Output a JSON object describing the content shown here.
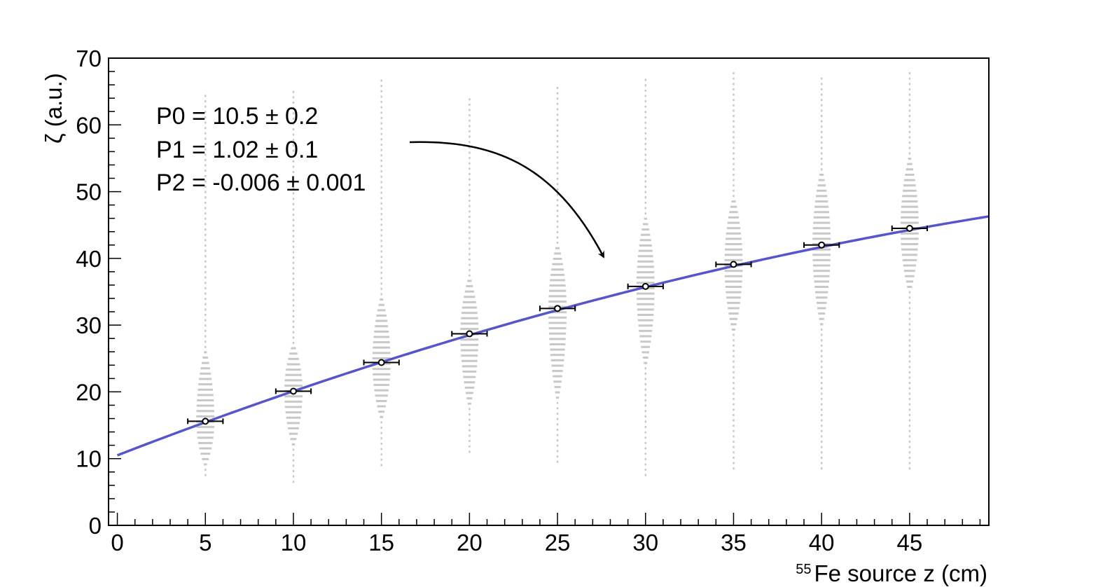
{
  "chart_data": {
    "type": "scatter",
    "xlabel_sup": "55",
    "xlabel": "Fe source z (cm)",
    "ylabel": "ζ (a.u.)",
    "xlim": [
      -0.5,
      49.5
    ],
    "ylim": [
      0,
      70
    ],
    "x_ticks": [
      0,
      5,
      10,
      15,
      20,
      25,
      30,
      35,
      40,
      45
    ],
    "y_ticks": [
      0,
      10,
      20,
      30,
      40,
      50,
      60,
      70
    ],
    "x_tick_labels": [
      "0",
      "5",
      "10",
      "15",
      "20",
      "25",
      "30",
      "35",
      "40",
      "45"
    ],
    "y_tick_labels": [
      "0",
      "10",
      "20",
      "30",
      "40",
      "50",
      "60",
      "70"
    ],
    "grid": false,
    "points": [
      {
        "x": 5,
        "y": 15.6,
        "xerr": 1
      },
      {
        "x": 10,
        "y": 20.1,
        "xerr": 1
      },
      {
        "x": 15,
        "y": 24.4,
        "xerr": 1
      },
      {
        "x": 20,
        "y": 28.7,
        "xerr": 1
      },
      {
        "x": 25,
        "y": 32.5,
        "xerr": 1
      },
      {
        "x": 30,
        "y": 35.8,
        "xerr": 1
      },
      {
        "x": 35,
        "y": 39.1,
        "xerr": 1
      },
      {
        "x": 40,
        "y": 42.0,
        "xerr": 1
      },
      {
        "x": 45,
        "y": 44.5,
        "xerr": 1
      }
    ],
    "distributions": [
      {
        "x": 5,
        "min": 7.5,
        "max": 65,
        "core_low": 9,
        "core_high": 26,
        "peak": 15.6
      },
      {
        "x": 10,
        "min": 6.5,
        "max": 65,
        "core_low": 12,
        "core_high": 27,
        "peak": 20.1
      },
      {
        "x": 15,
        "min": 9,
        "max": 67,
        "core_low": 16,
        "core_high": 34,
        "peak": 24.4
      },
      {
        "x": 20,
        "min": 11,
        "max": 64,
        "core_low": 18,
        "core_high": 37,
        "peak": 28.7
      },
      {
        "x": 25,
        "min": 9.5,
        "max": 66,
        "core_low": 19,
        "core_high": 42,
        "peak": 32.5
      },
      {
        "x": 30,
        "min": 7.5,
        "max": 67,
        "core_low": 24,
        "core_high": 46,
        "peak": 35.8
      },
      {
        "x": 35,
        "min": 8.5,
        "max": 68,
        "core_low": 29,
        "core_high": 49,
        "peak": 39.1
      },
      {
        "x": 40,
        "min": 8.5,
        "max": 67,
        "core_low": 30,
        "core_high": 53,
        "peak": 42.0
      },
      {
        "x": 45,
        "min": 8.5,
        "max": 68,
        "core_low": 35,
        "core_high": 55,
        "peak": 44.5
      }
    ],
    "fit": {
      "p0": 10.5,
      "p1": 1.02,
      "p2": -0.006,
      "x_range": [
        0,
        49.5
      ],
      "color": "#5555cc"
    },
    "fit_labels": [
      "P0 = 10.5 ± 0.2",
      "P1 = 1.02 ± 0.1",
      "P2 = -0.006 ± 0.001"
    ],
    "colors": {
      "distribution": "#c8c8c8",
      "fit": "#5555cc",
      "marker": "#000000"
    }
  }
}
